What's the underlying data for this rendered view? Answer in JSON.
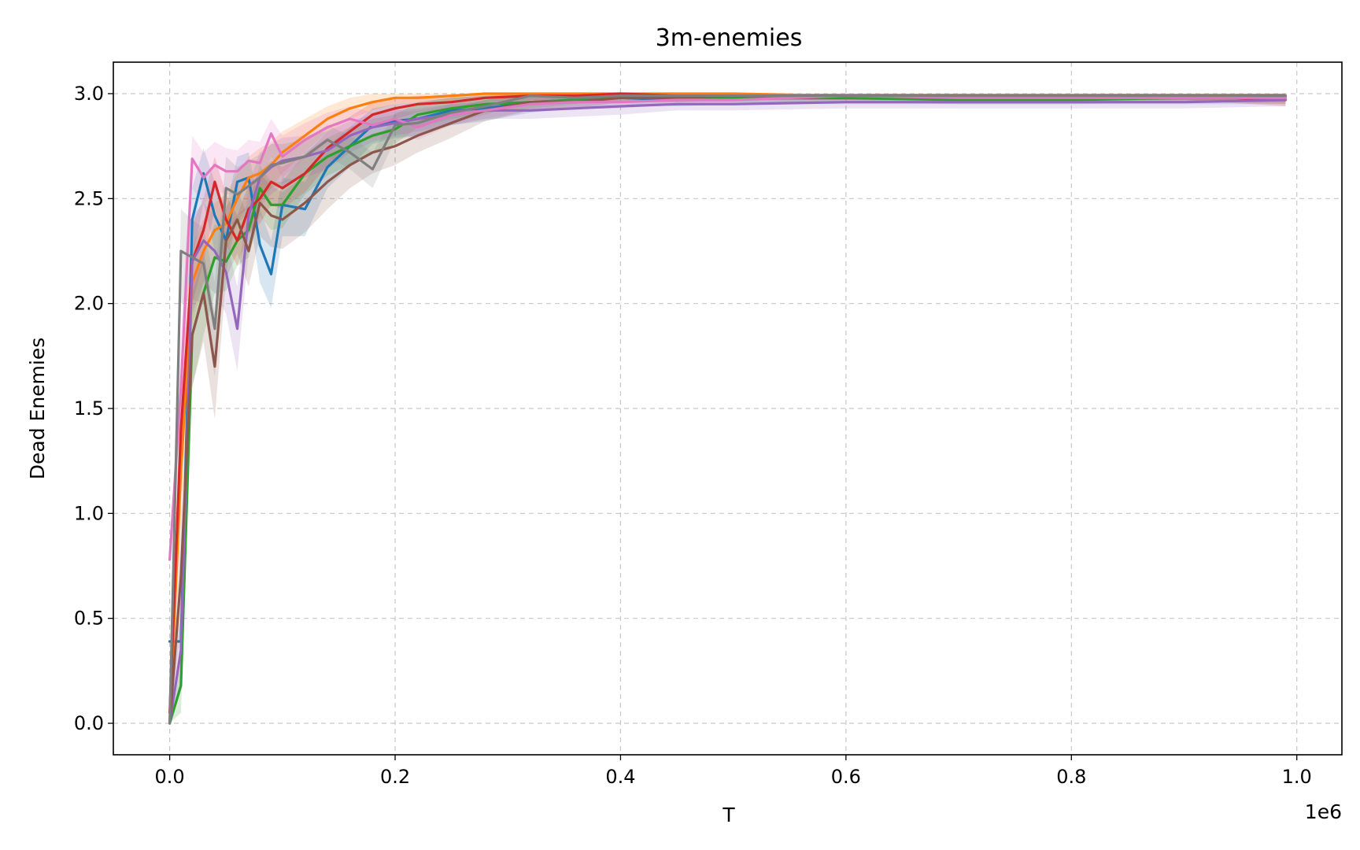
{
  "chart_data": {
    "type": "line",
    "title": "3m-enemies",
    "xlabel": "T",
    "ylabel": "Dead Enemies",
    "x_multiplier_label": "1e6",
    "xlim": [
      -0.05,
      1.04
    ],
    "ylim": [
      -0.15,
      3.15
    ],
    "xticks": [
      0.0,
      0.2,
      0.4,
      0.6,
      0.8,
      1.0
    ],
    "xtick_labels": [
      "0.0",
      "0.2",
      "0.4",
      "0.6",
      "0.8",
      "1.0"
    ],
    "yticks": [
      0.0,
      0.5,
      1.0,
      1.5,
      2.0,
      2.5,
      3.0
    ],
    "ytick_labels": [
      "0.0",
      "0.5",
      "1.0",
      "1.5",
      "2.0",
      "2.5",
      "3.0"
    ],
    "grid": true,
    "legend": "none",
    "x": [
      0.0,
      0.01,
      0.02,
      0.03,
      0.04,
      0.05,
      0.06,
      0.07,
      0.08,
      0.09,
      0.1,
      0.12,
      0.14,
      0.16,
      0.18,
      0.2,
      0.22,
      0.25,
      0.28,
      0.32,
      0.36,
      0.4,
      0.45,
      0.5,
      0.6,
      0.7,
      0.8,
      0.9,
      0.99
    ],
    "series": [
      {
        "color": "#1f77b4",
        "values": [
          0.39,
          0.39,
          2.4,
          2.62,
          2.42,
          2.3,
          2.58,
          2.6,
          2.28,
          2.14,
          2.47,
          2.45,
          2.65,
          2.75,
          2.85,
          2.87,
          2.88,
          2.92,
          2.93,
          2.96,
          2.97,
          2.98,
          2.97,
          2.98,
          2.98,
          2.98,
          2.98,
          2.98,
          2.98
        ],
        "lower": [
          0.39,
          0.39,
          2.2,
          2.48,
          2.25,
          2.15,
          2.42,
          2.45,
          2.1,
          1.98,
          2.32,
          2.32,
          2.55,
          2.65,
          2.76,
          2.79,
          2.8,
          2.85,
          2.87,
          2.91,
          2.93,
          2.95,
          2.94,
          2.95,
          2.95,
          2.95,
          2.95,
          2.95,
          2.95
        ],
        "upper": [
          0.39,
          0.39,
          2.55,
          2.74,
          2.58,
          2.45,
          2.7,
          2.72,
          2.45,
          2.3,
          2.6,
          2.58,
          2.75,
          2.84,
          2.93,
          2.95,
          2.96,
          2.98,
          2.99,
          3.0,
          3.0,
          3.0,
          3.0,
          3.0,
          3.0,
          3.0,
          3.0,
          3.0,
          3.0
        ]
      },
      {
        "color": "#ff7f0e",
        "values": [
          0.0,
          1.2,
          2.1,
          2.25,
          2.35,
          2.38,
          2.5,
          2.6,
          2.62,
          2.66,
          2.72,
          2.8,
          2.88,
          2.93,
          2.96,
          2.98,
          2.98,
          2.99,
          3.0,
          3.0,
          3.0,
          3.0,
          3.0,
          3.0,
          2.99,
          2.99,
          2.99,
          2.99,
          2.99
        ],
        "lower": [
          0.0,
          0.95,
          1.9,
          2.1,
          2.2,
          2.25,
          2.38,
          2.48,
          2.5,
          2.55,
          2.62,
          2.72,
          2.82,
          2.88,
          2.92,
          2.95,
          2.96,
          2.97,
          2.98,
          2.99,
          2.99,
          2.99,
          2.99,
          2.99,
          2.97,
          2.97,
          2.97,
          2.97,
          2.95
        ],
        "upper": [
          0.0,
          1.45,
          2.28,
          2.4,
          2.48,
          2.52,
          2.62,
          2.7,
          2.74,
          2.77,
          2.82,
          2.88,
          2.94,
          2.98,
          3.0,
          3.0,
          3.0,
          3.0,
          3.0,
          3.0,
          3.0,
          3.0,
          3.0,
          3.0,
          3.0,
          3.0,
          3.0,
          3.0,
          3.0
        ]
      },
      {
        "color": "#2ca02c",
        "values": [
          0.0,
          0.18,
          1.85,
          2.05,
          2.22,
          2.2,
          2.3,
          2.35,
          2.55,
          2.47,
          2.47,
          2.62,
          2.7,
          2.75,
          2.8,
          2.83,
          2.9,
          2.93,
          2.95,
          2.96,
          2.97,
          2.98,
          2.98,
          2.98,
          2.98,
          2.97,
          2.97,
          2.98,
          2.98
        ],
        "lower": [
          0.0,
          0.05,
          1.6,
          1.85,
          2.05,
          2.06,
          2.18,
          2.22,
          2.42,
          2.35,
          2.36,
          2.52,
          2.61,
          2.66,
          2.72,
          2.76,
          2.84,
          2.88,
          2.91,
          2.93,
          2.95,
          2.96,
          2.96,
          2.96,
          2.96,
          2.95,
          2.95,
          2.96,
          2.96
        ],
        "upper": [
          0.0,
          0.35,
          2.05,
          2.22,
          2.38,
          2.34,
          2.42,
          2.47,
          2.66,
          2.58,
          2.58,
          2.72,
          2.79,
          2.84,
          2.88,
          2.9,
          2.96,
          2.98,
          2.99,
          3.0,
          3.0,
          3.0,
          3.0,
          3.0,
          3.0,
          3.0,
          3.0,
          3.0,
          3.0
        ]
      },
      {
        "color": "#d62728",
        "values": [
          0.05,
          1.4,
          2.2,
          2.35,
          2.58,
          2.4,
          2.3,
          2.45,
          2.5,
          2.58,
          2.55,
          2.62,
          2.74,
          2.82,
          2.9,
          2.93,
          2.95,
          2.96,
          2.98,
          2.99,
          2.99,
          3.0,
          2.99,
          2.99,
          2.99,
          2.99,
          2.99,
          2.99,
          2.97
        ],
        "lower": [
          0.05,
          1.1,
          2.0,
          2.2,
          2.45,
          2.28,
          2.18,
          2.33,
          2.38,
          2.47,
          2.45,
          2.53,
          2.66,
          2.75,
          2.84,
          2.88,
          2.91,
          2.93,
          2.96,
          2.97,
          2.97,
          2.98,
          2.97,
          2.97,
          2.97,
          2.97,
          2.97,
          2.97,
          2.94
        ],
        "upper": [
          0.05,
          1.65,
          2.38,
          2.5,
          2.7,
          2.52,
          2.42,
          2.57,
          2.62,
          2.68,
          2.65,
          2.71,
          2.82,
          2.89,
          2.96,
          2.98,
          2.99,
          2.99,
          3.0,
          3.0,
          3.0,
          3.0,
          3.0,
          3.0,
          3.0,
          3.0,
          3.0,
          3.0,
          3.0
        ]
      },
      {
        "color": "#9467bd",
        "values": [
          0.0,
          0.35,
          2.2,
          2.3,
          2.25,
          2.15,
          1.88,
          2.42,
          2.6,
          2.65,
          2.68,
          2.7,
          2.73,
          2.8,
          2.84,
          2.86,
          2.88,
          2.9,
          2.92,
          2.92,
          2.93,
          2.94,
          2.95,
          2.95,
          2.96,
          2.96,
          2.96,
          2.96,
          2.97
        ],
        "lower": [
          0.0,
          0.15,
          1.95,
          2.1,
          2.05,
          1.95,
          1.68,
          2.25,
          2.46,
          2.52,
          2.56,
          2.6,
          2.64,
          2.72,
          2.77,
          2.8,
          2.82,
          2.85,
          2.88,
          2.88,
          2.89,
          2.9,
          2.92,
          2.92,
          2.93,
          2.93,
          2.93,
          2.93,
          2.94
        ],
        "upper": [
          0.0,
          0.55,
          2.42,
          2.48,
          2.42,
          2.32,
          2.08,
          2.57,
          2.72,
          2.76,
          2.79,
          2.8,
          2.82,
          2.87,
          2.9,
          2.92,
          2.93,
          2.95,
          2.96,
          2.96,
          2.97,
          2.98,
          2.98,
          2.98,
          2.99,
          2.99,
          2.99,
          2.99,
          3.0
        ]
      },
      {
        "color": "#8c564b",
        "values": [
          0.0,
          0.7,
          1.85,
          2.05,
          1.7,
          2.3,
          2.4,
          2.25,
          2.48,
          2.42,
          2.4,
          2.48,
          2.58,
          2.66,
          2.72,
          2.75,
          2.8,
          2.86,
          2.92,
          2.96,
          2.96,
          2.98,
          2.98,
          2.99,
          2.99,
          2.99,
          2.99,
          2.99,
          2.99
        ],
        "lower": [
          0.0,
          0.45,
          1.6,
          1.82,
          1.45,
          2.12,
          2.24,
          2.08,
          2.32,
          2.27,
          2.26,
          2.34,
          2.45,
          2.55,
          2.62,
          2.66,
          2.72,
          2.79,
          2.87,
          2.92,
          2.93,
          2.96,
          2.96,
          2.97,
          2.97,
          2.97,
          2.97,
          2.97,
          2.97
        ],
        "upper": [
          0.0,
          0.95,
          2.08,
          2.25,
          1.95,
          2.46,
          2.55,
          2.4,
          2.62,
          2.56,
          2.53,
          2.61,
          2.7,
          2.76,
          2.81,
          2.84,
          2.88,
          2.93,
          2.97,
          2.99,
          2.99,
          3.0,
          3.0,
          3.0,
          3.0,
          3.0,
          3.0,
          3.0,
          3.0
        ]
      },
      {
        "color": "#e377c2",
        "values": [
          0.78,
          1.6,
          2.69,
          2.6,
          2.66,
          2.63,
          2.63,
          2.68,
          2.67,
          2.81,
          2.7,
          2.78,
          2.84,
          2.88,
          2.85,
          2.88,
          2.84,
          2.9,
          2.92,
          2.95,
          2.96,
          2.96,
          2.97,
          2.97,
          2.99,
          2.98,
          2.98,
          2.98,
          2.98
        ],
        "lower": [
          0.78,
          1.35,
          2.55,
          2.47,
          2.54,
          2.52,
          2.52,
          2.57,
          2.56,
          2.7,
          2.6,
          2.69,
          2.76,
          2.81,
          2.78,
          2.82,
          2.78,
          2.85,
          2.88,
          2.92,
          2.93,
          2.93,
          2.95,
          2.95,
          2.97,
          2.96,
          2.96,
          2.96,
          2.96
        ],
        "upper": [
          0.78,
          1.85,
          2.8,
          2.72,
          2.77,
          2.74,
          2.73,
          2.78,
          2.77,
          2.88,
          2.8,
          2.86,
          2.91,
          2.94,
          2.91,
          2.93,
          2.9,
          2.95,
          2.96,
          2.98,
          2.99,
          2.99,
          3.0,
          3.0,
          3.0,
          3.0,
          3.0,
          3.0,
          3.0
        ]
      },
      {
        "color": "#7f7f7f",
        "values": [
          0.0,
          2.25,
          2.22,
          2.19,
          1.88,
          2.55,
          2.52,
          2.56,
          2.6,
          2.66,
          2.67,
          2.7,
          2.78,
          2.72,
          2.64,
          2.85,
          2.86,
          2.91,
          2.94,
          2.99,
          2.98,
          2.99,
          2.99,
          2.99,
          2.99,
          2.99,
          2.99,
          2.99,
          2.99
        ],
        "lower": [
          0.0,
          2.0,
          2.02,
          2.0,
          1.65,
          2.38,
          2.38,
          2.43,
          2.48,
          2.55,
          2.57,
          2.61,
          2.7,
          2.64,
          2.55,
          2.78,
          2.8,
          2.86,
          2.9,
          2.97,
          2.96,
          2.97,
          2.97,
          2.97,
          2.97,
          2.97,
          2.97,
          2.97,
          2.97
        ],
        "upper": [
          0.0,
          2.45,
          2.4,
          2.36,
          2.1,
          2.7,
          2.65,
          2.68,
          2.71,
          2.76,
          2.76,
          2.78,
          2.85,
          2.8,
          2.72,
          2.91,
          2.92,
          2.95,
          2.97,
          3.0,
          3.0,
          3.0,
          3.0,
          3.0,
          3.0,
          3.0,
          3.0,
          3.0,
          3.0
        ]
      }
    ]
  }
}
